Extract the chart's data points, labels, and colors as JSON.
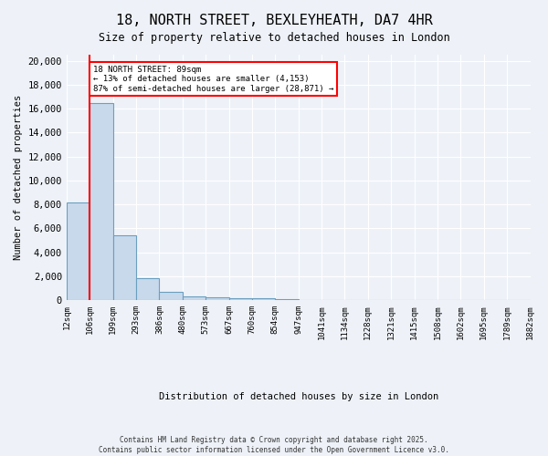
{
  "title_line1": "18, NORTH STREET, BEXLEYHEATH, DA7 4HR",
  "title_line2": "Size of property relative to detached houses in London",
  "xlabel": "Distribution of detached houses by size in London",
  "ylabel": "Number of detached properties",
  "bin_labels": [
    "12sqm",
    "106sqm",
    "199sqm",
    "293sqm",
    "386sqm",
    "480sqm",
    "573sqm",
    "667sqm",
    "760sqm",
    "854sqm",
    "947sqm",
    "1041sqm",
    "1134sqm",
    "1228sqm",
    "1321sqm",
    "1415sqm",
    "1508sqm",
    "1602sqm",
    "1695sqm",
    "1789sqm",
    "1882sqm"
  ],
  "bar_heights": [
    8200,
    16500,
    5400,
    1850,
    700,
    300,
    220,
    160,
    130,
    110,
    0,
    0,
    0,
    0,
    0,
    0,
    0,
    0,
    0,
    0
  ],
  "bar_color": "#c9d9ec",
  "bar_edge_color": "#6a9fc0",
  "annotation_title": "18 NORTH STREET: 89sqm",
  "annotation_line2": "← 13% of detached houses are smaller (4,153)",
  "annotation_line3": "87% of semi-detached houses are larger (28,871) →",
  "redline_x": 1.0,
  "ylim": [
    0,
    20500
  ],
  "yticks": [
    0,
    2000,
    4000,
    6000,
    8000,
    10000,
    12000,
    14000,
    16000,
    18000,
    20000
  ],
  "footnote1": "Contains HM Land Registry data © Crown copyright and database right 2025.",
  "footnote2": "Contains public sector information licensed under the Open Government Licence v3.0.",
  "background_color": "#eef2f8",
  "grid_color": "#ffffff"
}
